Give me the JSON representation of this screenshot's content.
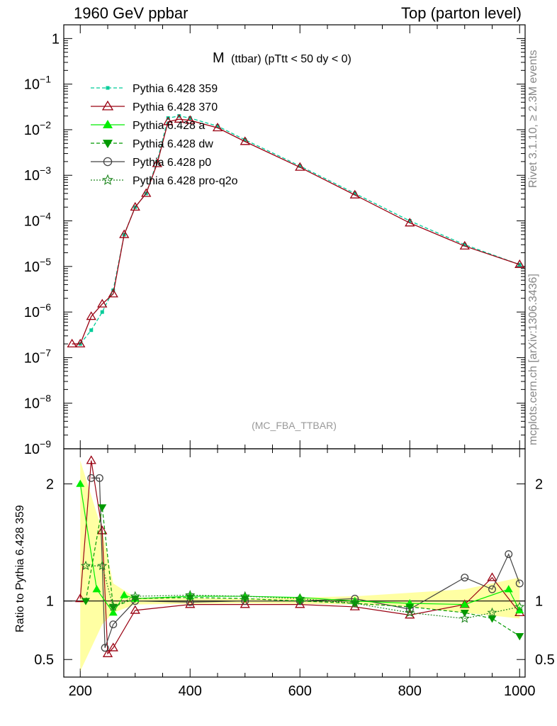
{
  "header": {
    "left": "1960 GeV ppbar",
    "right": "Top (parton level)"
  },
  "side_labels": {
    "rivet": "Rivet 3.1.10, ≥ 2.3M events",
    "mcplots": "mcplots.cern.ch [arXiv:1306.3436]"
  },
  "main_plot": {
    "title_main": "M",
    "title_sub": "(ttbar) (pTtt < 50 dy < 0)",
    "watermark": "(MC_FBA_TTBAR)",
    "y_scale": "log",
    "ylim": [
      1e-09,
      2
    ],
    "y_tick_labels": [
      "1",
      "10^{-1}",
      "10^{-2}",
      "10^{-3}",
      "10^{-4}",
      "10^{-5}",
      "10^{-6}",
      "10^{-7}",
      "10^{-8}",
      "10^{-9}"
    ]
  },
  "ratio_plot": {
    "ylabel": "Ratio to Pythia 6.428 359",
    "ylim": [
      0.35,
      2.3
    ],
    "y_tick_labels": [
      "0.5",
      "1",
      "2"
    ],
    "x_tick_labels": [
      "200",
      "400",
      "600",
      "800",
      "1000"
    ]
  },
  "legend": [
    {
      "name": "Pythia 6.428 359",
      "color": "#00cc99",
      "marker": "square",
      "dash": "dashed"
    },
    {
      "name": "Pythia 6.428 370",
      "color": "#990011",
      "marker": "open-triangle",
      "dash": "solid"
    },
    {
      "name": "Pythia 6.428 a",
      "color": "#00ee00",
      "marker": "triangle",
      "dash": "solid"
    },
    {
      "name": "Pythia 6.428 dw",
      "color": "#009900",
      "marker": "triangle-down",
      "dash": "dashed"
    },
    {
      "name": "Pythia 6.428 p0",
      "color": "#444444",
      "marker": "open-circle",
      "dash": "solid"
    },
    {
      "name": "Pythia 6.428 pro-q2o",
      "color": "#228822",
      "marker": "star",
      "dash": "dotted"
    }
  ],
  "chart_data": {
    "type": "line",
    "xlim": [
      170,
      1010
    ],
    "reference_series": "Pythia 6.428 359",
    "series": [
      {
        "name": "Pythia 6.428 359",
        "x": [
          200,
          220,
          240,
          260,
          280,
          300,
          320,
          340,
          360,
          380,
          400,
          450,
          500,
          600,
          700,
          800,
          900,
          1000
        ],
        "y": [
          2e-07,
          4e-07,
          1e-06,
          3e-06,
          5e-05,
          0.0002,
          0.0004,
          0.002,
          0.018,
          0.02,
          0.018,
          0.012,
          0.006,
          0.0016,
          0.0004,
          0.0001,
          3e-05,
          1.1e-05
        ]
      },
      {
        "name": "Pythia 6.428 370",
        "x": [
          185,
          200,
          220,
          240,
          260,
          280,
          300,
          320,
          340,
          360,
          380,
          400,
          450,
          500,
          600,
          700,
          800,
          900,
          1000
        ],
        "y": [
          2e-07,
          2e-07,
          8e-07,
          1.5e-06,
          2.5e-06,
          5e-05,
          0.0002,
          0.0004,
          0.0018,
          0.015,
          0.017,
          0.016,
          0.011,
          0.0055,
          0.0015,
          0.00037,
          9e-05,
          2.8e-05,
          1.1e-05
        ]
      }
    ],
    "ratio_band": {
      "x": [
        200,
        240,
        260,
        300,
        500,
        700,
        800,
        900,
        1000
      ],
      "low": [
        0.4,
        0.8,
        0.9,
        0.97,
        0.98,
        0.97,
        0.95,
        0.9,
        0.85
      ],
      "high": [
        2.2,
        1.6,
        1.15,
        1.03,
        1.02,
        1.04,
        1.07,
        1.1,
        1.2
      ]
    },
    "ratio_series": [
      {
        "name": "Pythia 6.428 370",
        "x": [
          200,
          220,
          240,
          250,
          260,
          300,
          400,
          500,
          600,
          700,
          800,
          900,
          950,
          1000
        ],
        "y": [
          1.02,
          2.2,
          1.6,
          0.55,
          0.6,
          0.92,
          0.97,
          0.97,
          0.97,
          0.95,
          0.88,
          0.97,
          1.2,
          0.9
        ]
      },
      {
        "name": "Pythia 6.428 p0",
        "x": [
          220,
          235,
          245,
          260,
          300,
          400,
          500,
          600,
          700,
          800,
          900,
          950,
          980,
          1000
        ],
        "y": [
          2.05,
          2.05,
          0.6,
          0.8,
          1.0,
          0.99,
          1.0,
          1.0,
          1.02,
          0.93,
          1.2,
          1.1,
          1.4,
          1.15
        ]
      },
      {
        "name": "Pythia 6.428 a",
        "x": [
          200,
          230,
          260,
          280,
          300,
          400,
          500,
          600,
          700,
          800,
          900,
          980,
          1000
        ],
        "y": [
          2.0,
          1.1,
          0.9,
          1.05,
          1.02,
          1.04,
          1.04,
          1.03,
          1.0,
          0.98,
          0.97,
          1.1,
          0.92
        ]
      },
      {
        "name": "Pythia 6.428 dw",
        "x": [
          210,
          240,
          260,
          300,
          400,
          500,
          600,
          700,
          800,
          900,
          950,
          1000
        ],
        "y": [
          1.0,
          1.8,
          0.95,
          1.02,
          1.03,
          1.02,
          1.0,
          0.98,
          0.95,
          0.9,
          0.85,
          0.7
        ]
      },
      {
        "name": "Pythia 6.428 pro-q2o",
        "x": [
          210,
          240,
          260,
          300,
          400,
          500,
          600,
          700,
          800,
          900,
          950,
          1000
        ],
        "y": [
          1.3,
          1.3,
          0.95,
          1.04,
          1.05,
          1.04,
          1.02,
          0.98,
          0.9,
          0.85,
          0.9,
          0.95
        ]
      }
    ]
  }
}
